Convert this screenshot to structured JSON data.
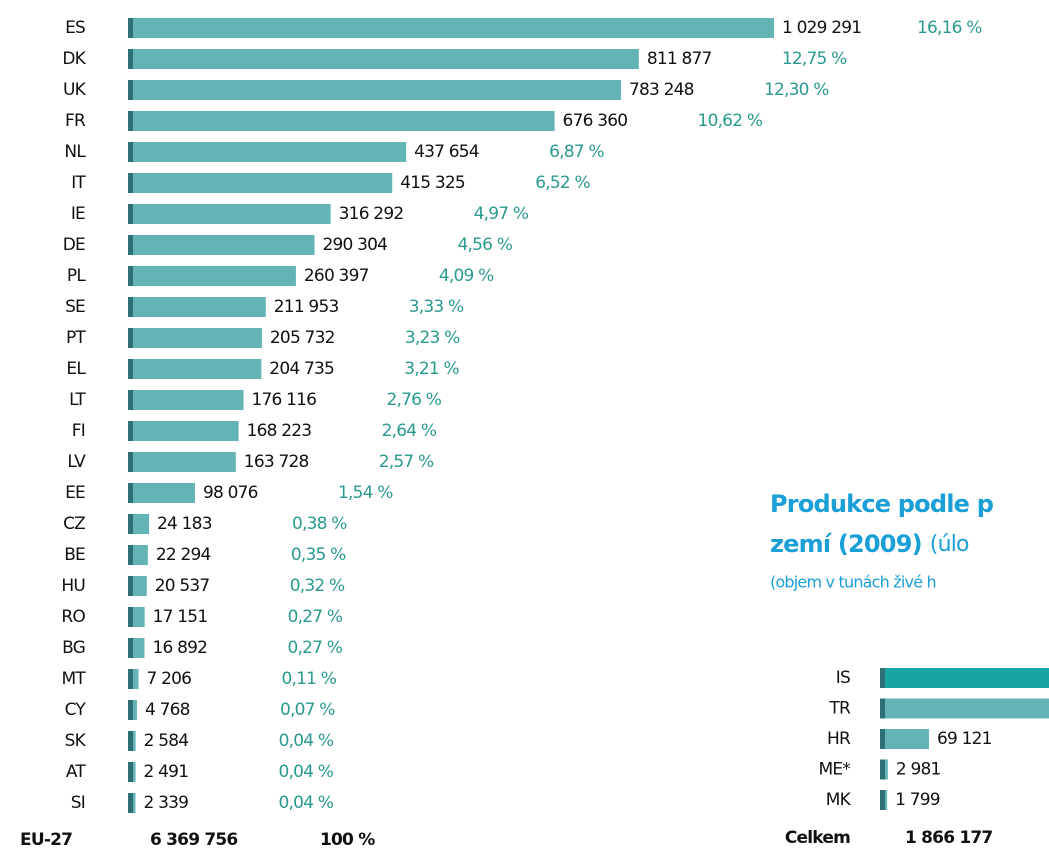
{
  "chart_data": [
    {
      "type": "hbar",
      "categories": [
        "ES",
        "DK",
        "UK",
        "FR",
        "NL",
        "IT",
        "IE",
        "DE",
        "PL",
        "SE",
        "PT",
        "EL",
        "LT",
        "FI",
        "LV",
        "EE",
        "CZ",
        "BE",
        "HU",
        "RO",
        "BG",
        "MT",
        "CY",
        "SK",
        "AT",
        "SI"
      ],
      "values": [
        1029291,
        811877,
        783248,
        676360,
        437654,
        415325,
        316292,
        290304,
        260397,
        211953,
        205732,
        204735,
        176116,
        168223,
        163728,
        98076,
        24183,
        22294,
        20537,
        17151,
        16892,
        7206,
        4768,
        2584,
        2491,
        2339
      ],
      "value_labels": [
        "1 029 291",
        "811 877",
        "783 248",
        "676 360",
        "437 654",
        "415 325",
        "316 292",
        "290 304",
        "260 397",
        "211 953",
        "205 732",
        "204 735",
        "176 116",
        "168 223",
        "163 728",
        "98 076",
        "24 183",
        "22 294",
        "20 537",
        "17 151",
        "16 892",
        "7 206",
        "4 768",
        "2 584",
        "2 491",
        "2 339"
      ],
      "share_labels": [
        "16,16 %",
        "12,75 %",
        "12,30 %",
        "10,62 %",
        "6,87 %",
        "6,52 %",
        "4,97 %",
        "4,56 %",
        "4,09 %",
        "3,33 %",
        "3,23 %",
        "3,21 %",
        "2,76 %",
        "2,64 %",
        "2,57 %",
        "1,54 %",
        "0,38 %",
        "0,35 %",
        "0,32 %",
        "0,27 %",
        "0,27 %",
        "0,11 %",
        "0,07 %",
        "0,04 %",
        "0,04 %",
        "0,04 %"
      ],
      "color": "#63b5b5",
      "total_name": "EU-27",
      "total_label": "6 369 756",
      "total_share_label": "100 %"
    },
    {
      "type": "hbar",
      "title": "Produkce podle p",
      "title_line2": "zemí (2009)",
      "title_note": "(úlo",
      "subtitle": "(objem v tunách živé h",
      "categories": [
        "IS",
        "TR",
        "HR",
        "ME*",
        "MK"
      ],
      "values": [
        1163000,
        629276,
        69121,
        2981,
        1799
      ],
      "value_labels": [
        null,
        null,
        "69 121",
        "2 981",
        "1 799"
      ],
      "color": "#63b5b5",
      "first_color": "#1aa3a3",
      "total_name": "Celkem",
      "total_label": "1 866 177"
    }
  ]
}
